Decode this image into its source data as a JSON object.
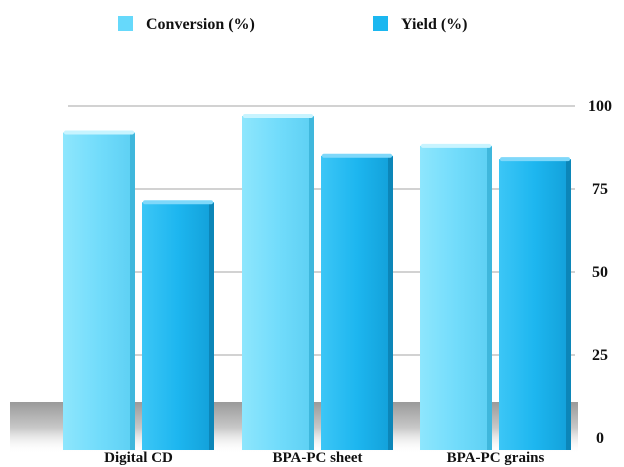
{
  "chart_data": {
    "type": "bar",
    "categories": [
      "Digital CD",
      "BPA-PC sheet",
      "BPA-PC grains"
    ],
    "series": [
      {
        "name": "Conversion (%)",
        "values": [
          92,
          97,
          88
        ],
        "color": "#66D9FB"
      },
      {
        "name": "Yield (%)",
        "values": [
          71,
          85,
          84
        ],
        "color": "#1BB7F0"
      }
    ],
    "ylim": [
      0,
      100
    ],
    "yticks": [
      0,
      25,
      50,
      75,
      100
    ],
    "grid": true,
    "legend_position": "top",
    "y_axis_side": "right",
    "style": "3d"
  }
}
